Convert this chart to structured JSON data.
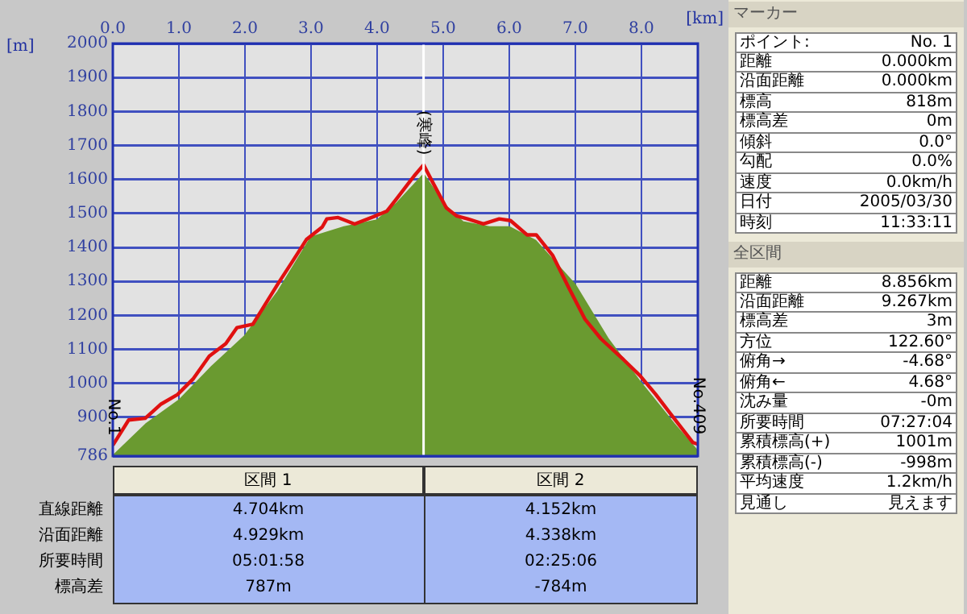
{
  "chart_data": {
    "type": "area",
    "xlabel": "[km]",
    "ylabel": "[m]",
    "xlim": [
      0,
      8.856
    ],
    "xticks": [
      {
        "value": 0,
        "label": "0.0"
      },
      {
        "value": 1,
        "label": "1.0"
      },
      {
        "value": 2,
        "label": "2.0"
      },
      {
        "value": 3,
        "label": "3.0"
      },
      {
        "value": 4,
        "label": "4.0"
      },
      {
        "value": 5,
        "label": "5.0"
      },
      {
        "value": 6,
        "label": "6.0"
      },
      {
        "value": 7,
        "label": "7.0"
      },
      {
        "value": 8,
        "label": "8.0"
      }
    ],
    "ylim": [
      786,
      2000
    ],
    "yticks": [
      786,
      900,
      1000,
      1100,
      1200,
      1300,
      1400,
      1500,
      1600,
      1700,
      1800,
      1900,
      2000
    ],
    "grid": true,
    "legend": false,
    "marker": "none",
    "line_style": "solid",
    "series": [
      {
        "type": "area",
        "color": "#6a9a30",
        "x": [
          0,
          0.5,
          1,
          1.5,
          2,
          2.5,
          3,
          3.5,
          4,
          4.3,
          4.704,
          5,
          5.3,
          5.7,
          6,
          6.4,
          7,
          7.5,
          8,
          8.5,
          8.856
        ],
        "values": [
          786,
          880,
          950,
          1050,
          1140,
          1270,
          1430,
          1460,
          1480,
          1530,
          1615,
          1530,
          1475,
          1460,
          1460,
          1420,
          1290,
          1130,
          1000,
          880,
          800
        ]
      },
      {
        "type": "line",
        "color": "#e01010",
        "x": [
          0,
          0.24,
          0.49,
          0.73,
          0.98,
          1.22,
          1.46,
          1.71,
          1.88,
          2.12,
          2.27,
          2.51,
          2.73,
          2.93,
          3.17,
          3.24,
          3.41,
          3.66,
          3.98,
          4.15,
          4.32,
          4.56,
          4.704,
          4.83,
          5.05,
          5.2,
          5.37,
          5.61,
          5.85,
          6.02,
          6.27,
          6.41,
          6.66,
          6.9,
          7.15,
          7.39,
          7.73,
          7.98,
          8.22,
          8.46,
          8.78,
          8.856
        ],
        "values": [
          818,
          892,
          897,
          939,
          967,
          1014,
          1080,
          1117,
          1164,
          1174,
          1221,
          1296,
          1362,
          1423,
          1460,
          1484,
          1488,
          1469,
          1493,
          1507,
          1549,
          1610,
          1643,
          1596,
          1516,
          1493,
          1484,
          1469,
          1484,
          1479,
          1437,
          1437,
          1376,
          1282,
          1188,
          1131,
          1070,
          1023,
          967,
          906,
          826,
          821
        ]
      }
    ],
    "ref_lines": [
      {
        "axis": "x",
        "value": 4.704,
        "color": "#ffffff"
      }
    ],
    "annotations": [
      {
        "text": "(寒峰)",
        "x": 4.704,
        "y": 1643
      },
      {
        "text": "No.1",
        "x": 0,
        "y": 818
      },
      {
        "text": "No.409",
        "x": 8.856,
        "y": 821
      },
      "マーカー",
      "ポイント:",
      "No. 1",
      "距離",
      "0.000km",
      "沿面距離",
      "0.000km",
      "標高",
      "818m",
      "標高差",
      "0m",
      "傾斜",
      "0.0°",
      "勾配",
      "0.0%",
      "速度",
      "0.0km/h",
      "日付",
      "2005/03/30",
      "時刻",
      "11:33:11",
      "全区間",
      "距離",
      "8.856km",
      "沿面距離",
      "9.267km",
      "標高差",
      "3m",
      "方位",
      "122.60°",
      "俯角→",
      "-4.68°",
      "俯角←",
      "4.68°",
      "沈み量",
      "-0m",
      "所要時間",
      "07:27:04",
      "累積標高(+)",
      "1001m",
      "累積標高(-)",
      "-998m",
      "平均速度",
      "1.2km/h",
      "見通し",
      "見えます",
      "区間 1",
      "区間 2",
      "直線距離",
      "4.704km",
      "4.152km",
      "沿面距離",
      "4.929km",
      "4.338km",
      "所要時間",
      "05:01:58",
      "02:25:06",
      "標高差",
      "787m",
      "-784m"
    ]
  }
}
